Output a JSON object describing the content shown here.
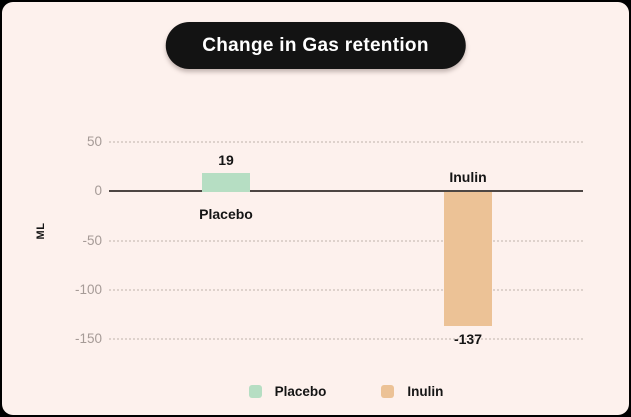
{
  "header": {
    "title": "Change in Gas retention"
  },
  "chart_data": {
    "type": "bar",
    "title": "Change in Gas retention",
    "categories": [
      "Placebo",
      "Inulin"
    ],
    "values": [
      19,
      -137
    ],
    "bar_colors": [
      "#b6dec3",
      "#ecc296"
    ],
    "xlabel": "",
    "ylabel": "ML",
    "ylim": [
      -150,
      50
    ],
    "yticks": [
      50,
      0,
      -50,
      -100,
      -150
    ],
    "grid": "horizontal-dotted",
    "zero_baseline": true,
    "legend_position": "bottom",
    "legend": [
      {
        "label": "Placebo",
        "color": "#b6dec3"
      },
      {
        "label": "Inulin",
        "color": "#ecc296"
      }
    ]
  },
  "colors": {
    "page_background": "#000000",
    "card_background": "#fdf1ed",
    "title_pill_background": "#131313",
    "title_text": "#ffffff",
    "placebo_bar": "#b6dec3",
    "inulin_bar": "#ecc296",
    "zero_line": "#4d4643",
    "gridline": "#ded2cc",
    "tick_label": "#a69b97",
    "text": "#151515"
  }
}
